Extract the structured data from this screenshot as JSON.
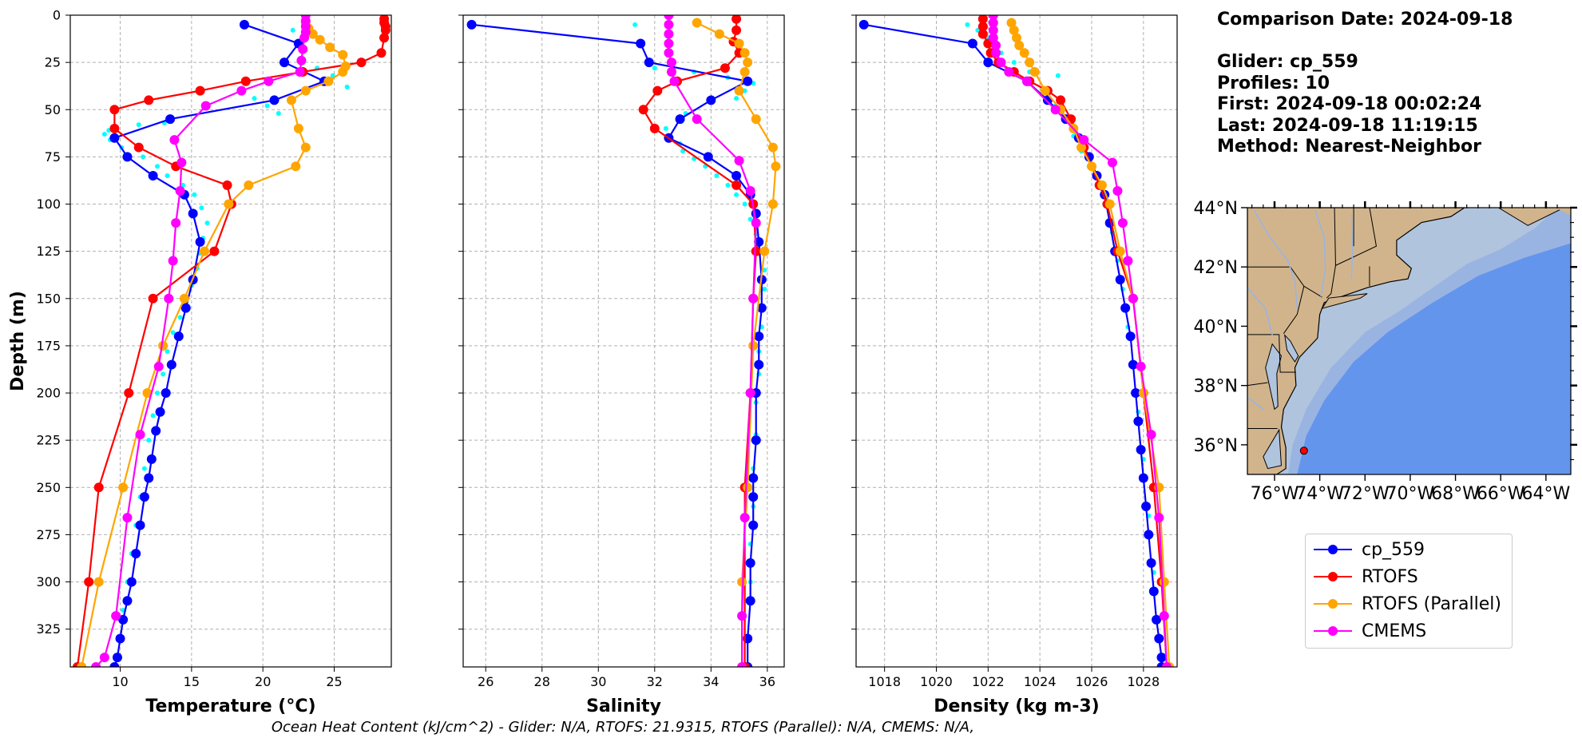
{
  "info": {
    "comparison": "Comparison Date: 2024-09-18",
    "glider": "Glider: cp_559",
    "profiles": "Profiles: 10",
    "first": "First: 2024-09-18 00:02:24",
    "last": "Last: 2024-09-18 11:19:15",
    "method": "Method: Nearest-Neighbor"
  },
  "footer": "Ocean Heat Content (kJ/cm^2) - Glider: N/A,  RTOFS: 21.9315,  RTOFS (Parallel): N/A,  CMEMS: N/A,",
  "legend": [
    {
      "name": "cp_559",
      "color": "#0000ff"
    },
    {
      "name": "RTOFS",
      "color": "#ff0000"
    },
    {
      "name": "RTOFS (Parallel)",
      "color": "#ffa500"
    },
    {
      "name": "CMEMS",
      "color": "#ff00ff"
    }
  ],
  "map": {
    "lat_ticks": [
      "44°N",
      "42°N",
      "40°N",
      "38°N",
      "36°N"
    ],
    "lon_ticks": [
      "76°W",
      "74°W",
      "72°W",
      "70°W",
      "68°W",
      "66°W",
      "64°W"
    ],
    "glider_marker": {
      "lon": -74.7,
      "lat": 35.8
    },
    "colors": {
      "land": "#d2b48c",
      "deep": "#6495ed",
      "shelf": "#b0c4de",
      "mid": "#9ab4e2"
    }
  },
  "chart_data": [
    {
      "type": "line",
      "xlabel": "Temperature (°C)",
      "ylabel": "Depth (m)",
      "xlim": [
        6.5,
        29
      ],
      "ylim": [
        345,
        0
      ],
      "xticks": [
        10,
        15,
        20,
        25
      ],
      "yticks": [
        0,
        25,
        50,
        75,
        100,
        125,
        150,
        175,
        200,
        225,
        250,
        275,
        300,
        325
      ],
      "series": [
        {
          "name": "cp_559",
          "color": "#0000ff",
          "markers": true,
          "x": [
            18.7,
            22.5,
            21.5,
            24.3,
            20.8,
            13.5,
            9.6,
            10.5,
            12.3,
            14.5,
            15.1,
            15.6,
            15.1,
            14.6,
            14.1,
            13.6,
            13.2,
            12.8,
            12.5,
            12.2,
            12.0,
            11.7,
            11.4,
            11.1,
            10.8,
            10.5,
            10.2,
            10.0,
            9.8,
            9.6
          ],
          "y": [
            5,
            15,
            25,
            35,
            45,
            55,
            65,
            75,
            85,
            95,
            105,
            120,
            140,
            155,
            170,
            185,
            200,
            210,
            220,
            235,
            245,
            255,
            270,
            285,
            300,
            310,
            320,
            330,
            340,
            345
          ]
        },
        {
          "name": "RTOFS",
          "color": "#ff0000",
          "markers": true,
          "x": [
            28.5,
            28.5,
            28.6,
            28.6,
            28.5,
            28.3,
            26.9,
            22.8,
            18.8,
            15.6,
            12.0,
            9.6,
            9.6,
            11.3,
            13.9,
            17.5,
            17.8,
            16.6,
            12.3,
            10.6,
            8.5,
            7.8,
            7.0
          ],
          "y": [
            2,
            4,
            6,
            8,
            12,
            20,
            25,
            30,
            35,
            40,
            45,
            50,
            60,
            70,
            80,
            90,
            100,
            125,
            150,
            200,
            250,
            300,
            345
          ]
        },
        {
          "name": "RTOFS (Parallel)",
          "color": "#ffa500",
          "markers": true,
          "x": [
            23.0,
            23.2,
            23.5,
            24.0,
            24.7,
            25.6,
            25.8,
            25.6,
            24.6,
            23.0,
            22.0,
            22.5,
            23.0,
            22.3,
            19.0,
            17.6,
            15.9,
            14.5,
            13.0,
            11.9,
            10.2,
            8.5,
            7.3
          ],
          "y": [
            4,
            7,
            10,
            13,
            17,
            21,
            27,
            30,
            35,
            40,
            45,
            60,
            70,
            80,
            90,
            100,
            125,
            150,
            175,
            200,
            250,
            300,
            345
          ]
        },
        {
          "name": "CMEMS",
          "color": "#ff00ff",
          "markers": true,
          "x": [
            23.0,
            23.0,
            23.0,
            23.0,
            22.9,
            22.8,
            22.7,
            22.6,
            20.4,
            18.5,
            16.0,
            13.8,
            14.3,
            14.2,
            13.9,
            13.7,
            13.4,
            12.7,
            11.4,
            10.5,
            9.7,
            8.9,
            8.3
          ],
          "y": [
            0,
            3,
            6,
            9,
            12,
            18,
            24,
            30,
            35,
            40,
            48,
            66,
            78,
            93,
            110,
            130,
            150,
            186,
            222,
            266,
            318,
            340,
            345
          ]
        }
      ],
      "scatter": {
        "name": "glider profiles",
        "color": "#00ffff",
        "x": [
          22.1,
          23.8,
          24.9,
          25.9,
          19.4,
          20.3,
          21.1,
          13.1,
          11.3,
          9.2,
          8.9,
          9.3,
          10.1,
          11.6,
          12.6,
          13.3,
          14.4,
          15.2,
          15.7,
          16.1,
          15.8,
          15.6,
          15.4,
          15.0,
          14.6,
          14.2,
          13.7,
          13.3,
          13.0,
          12.6,
          12.3,
          12.0,
          11.7,
          11.4,
          11.1,
          10.8,
          10.5,
          10.2,
          9.9
        ],
        "y": [
          8,
          28,
          32,
          38,
          44,
          48,
          52,
          57,
          58,
          61,
          63,
          66,
          70,
          75,
          80,
          85,
          90,
          95,
          102,
          110,
          118,
          126,
          134,
          143,
          152,
          160,
          168,
          178,
          190,
          200,
          212,
          225,
          240,
          255,
          270,
          285,
          300,
          315,
          330
        ]
      }
    },
    {
      "type": "line",
      "xlabel": "Salinity",
      "xlim": [
        25.2,
        36.6
      ],
      "ylim": [
        345,
        0
      ],
      "xticks": [
        26,
        28,
        30,
        32,
        34,
        36
      ],
      "series": [
        {
          "name": "cp_559",
          "color": "#0000ff",
          "markers": true,
          "x": [
            25.5,
            31.5,
            31.8,
            35.3,
            34.0,
            32.9,
            32.5,
            33.9,
            34.9,
            35.4,
            35.6,
            35.7,
            35.8,
            35.8,
            35.7,
            35.7,
            35.6,
            35.6,
            35.5,
            35.5,
            35.5,
            35.4,
            35.4,
            35.3,
            35.3
          ],
          "y": [
            5,
            15,
            25,
            35,
            45,
            55,
            65,
            75,
            85,
            95,
            105,
            120,
            140,
            155,
            170,
            185,
            200,
            225,
            245,
            255,
            270,
            290,
            310,
            330,
            345
          ]
        },
        {
          "name": "RTOFS",
          "color": "#ff0000",
          "markers": true,
          "x": [
            34.9,
            34.9,
            34.8,
            35.0,
            34.5,
            32.8,
            32.1,
            31.6,
            32.0,
            34.9,
            35.5,
            35.6,
            35.5,
            35.4,
            35.2,
            35.2
          ],
          "y": [
            2,
            8,
            14,
            20,
            28,
            35,
            40,
            50,
            60,
            90,
            100,
            125,
            150,
            200,
            250,
            345
          ]
        },
        {
          "name": "RTOFS (Parallel)",
          "color": "#ffa500",
          "markers": true,
          "x": [
            33.5,
            34.3,
            35.0,
            35.2,
            35.3,
            35.2,
            35.0,
            35.6,
            36.2,
            36.3,
            36.2,
            35.9,
            35.5,
            35.3,
            35.1,
            35.1
          ],
          "y": [
            4,
            10,
            15,
            20,
            25,
            30,
            40,
            55,
            70,
            80,
            100,
            125,
            175,
            250,
            300,
            345
          ]
        },
        {
          "name": "CMEMS",
          "color": "#ff00ff",
          "markers": true,
          "x": [
            32.5,
            32.5,
            32.5,
            32.5,
            32.5,
            32.6,
            32.6,
            32.7,
            33.5,
            35.0,
            35.4,
            35.6,
            35.5,
            35.4,
            35.2,
            35.1,
            35.1
          ],
          "y": [
            0,
            5,
            10,
            15,
            20,
            25,
            30,
            35,
            55,
            77,
            93,
            110,
            150,
            200,
            266,
            318,
            345
          ]
        }
      ],
      "scatter": {
        "name": "glider profiles",
        "color": "#00ffff",
        "x": [
          31.3,
          32.0,
          33.4,
          34.6,
          35.5,
          35.2,
          34.9,
          33.1,
          32.4,
          32.9,
          33.0,
          33.4,
          33.8,
          34.2,
          34.6,
          34.9,
          35.2,
          35.4,
          35.6,
          35.8,
          35.9,
          35.9,
          35.8,
          35.8,
          35.7,
          35.7,
          35.6,
          35.6,
          35.5,
          35.5,
          35.4,
          35.4,
          35.3
        ],
        "y": [
          5,
          28,
          30,
          33,
          36,
          40,
          44,
          52,
          60,
          68,
          72,
          76,
          80,
          85,
          90,
          95,
          100,
          108,
          116,
          125,
          135,
          145,
          155,
          165,
          178,
          190,
          205,
          222,
          240,
          260,
          280,
          300,
          330
        ]
      }
    },
    {
      "type": "line",
      "xlabel": "Density (kg m-3)",
      "xlim": [
        1016.9,
        1029.3
      ],
      "ylim": [
        345,
        0
      ],
      "xticks": [
        1018,
        1020,
        1022,
        1024,
        1026,
        1028
      ],
      "series": [
        {
          "name": "cp_559",
          "color": "#0000ff",
          "markers": true,
          "x": [
            1017.2,
            1021.4,
            1022.0,
            1023.5,
            1024.3,
            1025.0,
            1025.5,
            1025.9,
            1026.2,
            1026.5,
            1026.7,
            1026.9,
            1027.1,
            1027.3,
            1027.5,
            1027.6,
            1027.7,
            1027.8,
            1027.9,
            1028.0,
            1028.1,
            1028.2,
            1028.3,
            1028.4,
            1028.5,
            1028.6,
            1028.7,
            1028.7
          ],
          "y": [
            5,
            15,
            25,
            35,
            45,
            55,
            65,
            75,
            85,
            95,
            110,
            125,
            140,
            155,
            170,
            185,
            200,
            215,
            230,
            245,
            260,
            275,
            290,
            305,
            320,
            330,
            340,
            345
          ]
        },
        {
          "name": "RTOFS",
          "color": "#ff0000",
          "markers": true,
          "x": [
            1021.8,
            1021.8,
            1021.8,
            1022.0,
            1022.1,
            1022.4,
            1023.0,
            1023.6,
            1024.3,
            1024.8,
            1025.2,
            1025.7,
            1026.3,
            1026.6,
            1027.0,
            1027.6,
            1028.0,
            1028.4,
            1028.7,
            1028.9
          ],
          "y": [
            2,
            6,
            10,
            15,
            20,
            25,
            30,
            35,
            40,
            45,
            55,
            70,
            90,
            100,
            125,
            150,
            200,
            250,
            300,
            345
          ]
        },
        {
          "name": "RTOFS (Parallel)",
          "color": "#ffa500",
          "markers": true,
          "x": [
            1022.9,
            1023.0,
            1023.1,
            1023.2,
            1023.4,
            1023.6,
            1023.8,
            1024.2,
            1024.8,
            1025.3,
            1025.6,
            1026.0,
            1026.4,
            1026.7,
            1027.1,
            1027.6,
            1028.0,
            1028.6,
            1028.8,
            1029.0
          ],
          "y": [
            4,
            8,
            12,
            16,
            20,
            25,
            30,
            40,
            50,
            60,
            70,
            80,
            90,
            100,
            125,
            150,
            200,
            250,
            300,
            345
          ]
        },
        {
          "name": "CMEMS",
          "color": "#ff00ff",
          "markers": true,
          "x": [
            1022.2,
            1022.2,
            1022.2,
            1022.2,
            1022.3,
            1022.3,
            1022.5,
            1022.8,
            1023.5,
            1024.6,
            1025.7,
            1026.8,
            1027.0,
            1027.2,
            1027.4,
            1027.6,
            1027.9,
            1028.3,
            1028.6,
            1028.8,
            1028.9
          ],
          "y": [
            0,
            4,
            8,
            12,
            16,
            20,
            25,
            30,
            35,
            50,
            66,
            78,
            93,
            110,
            130,
            150,
            186,
            222,
            266,
            318,
            345
          ]
        }
      ],
      "scatter": {
        "name": "glider profiles",
        "color": "#00ffff",
        "x": [
          1021.2,
          1021.6,
          1022.0,
          1022.5,
          1023.0,
          1023.6,
          1024.7,
          1024.4,
          1024.6,
          1025.0,
          1025.3,
          1025.6,
          1025.9,
          1026.2,
          1026.5,
          1026.8,
          1027.0,
          1027.2,
          1027.4,
          1027.6,
          1027.8,
          1028.0,
          1028.2,
          1028.4,
          1028.6
        ],
        "y": [
          5,
          8,
          12,
          20,
          25,
          30,
          32,
          40,
          48,
          56,
          64,
          72,
          80,
          90,
          100,
          115,
          130,
          145,
          165,
          185,
          210,
          235,
          265,
          295,
          330
        ]
      }
    }
  ]
}
